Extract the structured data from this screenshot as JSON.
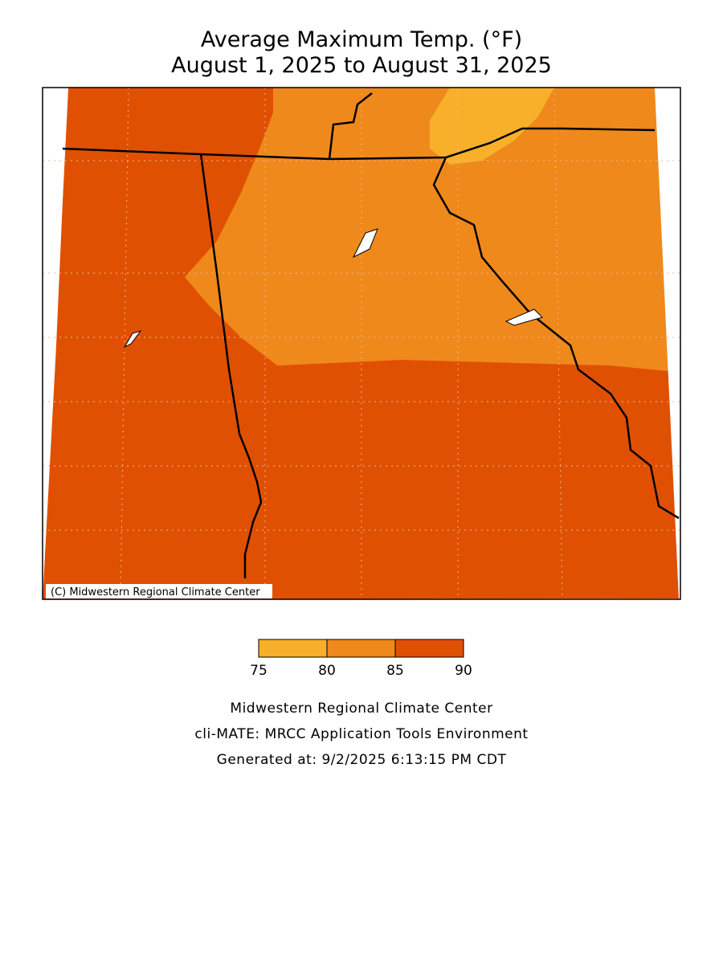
{
  "title": [
    "Average Maximum Temp. (°F)",
    "August 1, 2025 to August 31, 2025"
  ],
  "map": {
    "credit": "(C) Midwestern Regional Climate Center"
  },
  "legend": {
    "ticks": [
      75,
      80,
      85,
      90
    ],
    "colors": [
      "#f8b02a",
      "#ef891b",
      "#e05002"
    ]
  },
  "footer": [
    "Midwestern Regional Climate Center",
    "cli-MATE: MRCC Application Tools Environment",
    "Generated at: 9/2/2025 6:13:15 PM CDT"
  ]
}
